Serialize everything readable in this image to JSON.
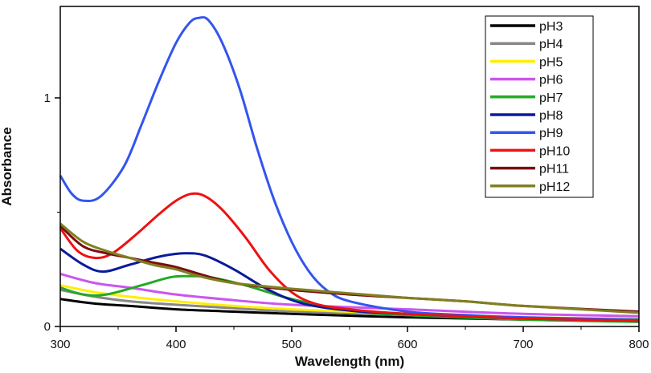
{
  "chart_data": {
    "type": "line",
    "title": "",
    "xlabel": "Wavelength (nm)",
    "ylabel": "Absorbance",
    "xlim": [
      300,
      800
    ],
    "ylim": [
      0,
      1.4
    ],
    "xticks": [
      300,
      400,
      500,
      600,
      700,
      800
    ],
    "xtick_labels": [
      "300",
      "400",
      "500",
      "600",
      "700",
      "800"
    ],
    "yticks": [
      0,
      1
    ],
    "ytick_labels": [
      "0",
      "1"
    ],
    "legend_position": "top-right",
    "grid": false,
    "series": [
      {
        "name": "pH3",
        "color": "#000000",
        "points": [
          [
            300,
            0.12
          ],
          [
            330,
            0.1
          ],
          [
            360,
            0.09
          ],
          [
            400,
            0.075
          ],
          [
            450,
            0.065
          ],
          [
            500,
            0.055
          ],
          [
            600,
            0.04
          ],
          [
            700,
            0.03
          ],
          [
            800,
            0.025
          ]
        ]
      },
      {
        "name": "pH4",
        "color": "#888888",
        "points": [
          [
            300,
            0.16
          ],
          [
            330,
            0.13
          ],
          [
            360,
            0.11
          ],
          [
            400,
            0.095
          ],
          [
            450,
            0.08
          ],
          [
            500,
            0.065
          ],
          [
            600,
            0.05
          ],
          [
            700,
            0.035
          ],
          [
            800,
            0.03
          ]
        ]
      },
      {
        "name": "pH5",
        "color": "#ffee00",
        "points": [
          [
            300,
            0.18
          ],
          [
            330,
            0.15
          ],
          [
            360,
            0.13
          ],
          [
            400,
            0.11
          ],
          [
            450,
            0.09
          ],
          [
            500,
            0.075
          ],
          [
            600,
            0.055
          ],
          [
            700,
            0.04
          ],
          [
            800,
            0.035
          ]
        ]
      },
      {
        "name": "pH6",
        "color": "#cc55ee",
        "points": [
          [
            300,
            0.23
          ],
          [
            330,
            0.19
          ],
          [
            360,
            0.17
          ],
          [
            400,
            0.14
          ],
          [
            450,
            0.115
          ],
          [
            500,
            0.095
          ],
          [
            600,
            0.075
          ],
          [
            700,
            0.055
          ],
          [
            800,
            0.045
          ]
        ]
      },
      {
        "name": "pH7",
        "color": "#22aa22",
        "points": [
          [
            300,
            0.17
          ],
          [
            320,
            0.14
          ],
          [
            340,
            0.14
          ],
          [
            370,
            0.18
          ],
          [
            395,
            0.215
          ],
          [
            410,
            0.22
          ],
          [
            430,
            0.215
          ],
          [
            460,
            0.18
          ],
          [
            500,
            0.12
          ],
          [
            550,
            0.07
          ],
          [
            600,
            0.05
          ],
          [
            700,
            0.03
          ],
          [
            800,
            0.02
          ]
        ]
      },
      {
        "name": "pH8",
        "color": "#0a1a9c",
        "points": [
          [
            300,
            0.34
          ],
          [
            320,
            0.27
          ],
          [
            337,
            0.24
          ],
          [
            360,
            0.27
          ],
          [
            385,
            0.305
          ],
          [
            407,
            0.32
          ],
          [
            425,
            0.31
          ],
          [
            450,
            0.25
          ],
          [
            480,
            0.16
          ],
          [
            510,
            0.1
          ],
          [
            550,
            0.07
          ],
          [
            600,
            0.055
          ],
          [
            700,
            0.035
          ],
          [
            800,
            0.025
          ]
        ]
      },
      {
        "name": "pH9",
        "color": "#3355ee",
        "points": [
          [
            300,
            0.66
          ],
          [
            310,
            0.58
          ],
          [
            320,
            0.55
          ],
          [
            335,
            0.57
          ],
          [
            355,
            0.7
          ],
          [
            370,
            0.88
          ],
          [
            385,
            1.07
          ],
          [
            400,
            1.24
          ],
          [
            412,
            1.33
          ],
          [
            420,
            1.35
          ],
          [
            428,
            1.34
          ],
          [
            440,
            1.24
          ],
          [
            455,
            1.04
          ],
          [
            470,
            0.78
          ],
          [
            485,
            0.55
          ],
          [
            500,
            0.37
          ],
          [
            515,
            0.24
          ],
          [
            530,
            0.16
          ],
          [
            550,
            0.11
          ],
          [
            600,
            0.065
          ],
          [
            650,
            0.05
          ],
          [
            700,
            0.04
          ],
          [
            800,
            0.03
          ]
        ]
      },
      {
        "name": "pH10",
        "color": "#ee1111",
        "points": [
          [
            300,
            0.43
          ],
          [
            315,
            0.33
          ],
          [
            330,
            0.3
          ],
          [
            345,
            0.32
          ],
          [
            365,
            0.4
          ],
          [
            385,
            0.49
          ],
          [
            400,
            0.55
          ],
          [
            413,
            0.58
          ],
          [
            425,
            0.57
          ],
          [
            440,
            0.51
          ],
          [
            460,
            0.39
          ],
          [
            480,
            0.25
          ],
          [
            500,
            0.15
          ],
          [
            520,
            0.1
          ],
          [
            550,
            0.075
          ],
          [
            600,
            0.055
          ],
          [
            650,
            0.045
          ],
          [
            700,
            0.035
          ],
          [
            800,
            0.025
          ]
        ]
      },
      {
        "name": "pH11",
        "color": "#7a0e0e",
        "points": [
          [
            300,
            0.44
          ],
          [
            320,
            0.35
          ],
          [
            340,
            0.32
          ],
          [
            360,
            0.3
          ],
          [
            380,
            0.28
          ],
          [
            400,
            0.26
          ],
          [
            420,
            0.23
          ],
          [
            450,
            0.19
          ],
          [
            500,
            0.16
          ],
          [
            550,
            0.14
          ],
          [
            600,
            0.125
          ],
          [
            650,
            0.11
          ],
          [
            700,
            0.09
          ],
          [
            800,
            0.065
          ]
        ]
      },
      {
        "name": "pH12",
        "color": "#808020",
        "points": [
          [
            300,
            0.45
          ],
          [
            320,
            0.37
          ],
          [
            340,
            0.33
          ],
          [
            360,
            0.3
          ],
          [
            380,
            0.27
          ],
          [
            400,
            0.25
          ],
          [
            420,
            0.22
          ],
          [
            450,
            0.19
          ],
          [
            500,
            0.165
          ],
          [
            550,
            0.145
          ],
          [
            600,
            0.125
          ],
          [
            650,
            0.11
          ],
          [
            700,
            0.09
          ],
          [
            800,
            0.06
          ]
        ]
      }
    ]
  }
}
